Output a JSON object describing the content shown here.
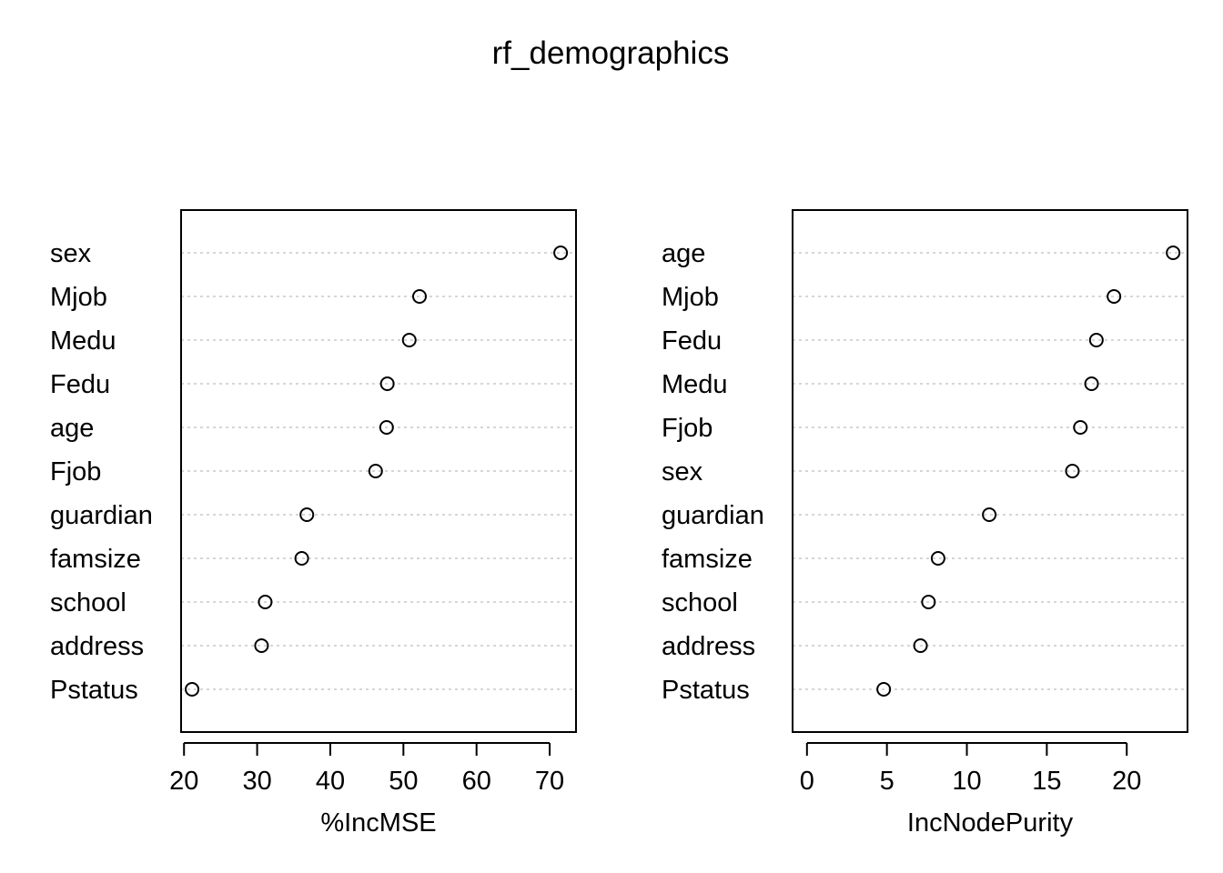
{
  "title": "rf_demographics",
  "colors": {
    "background": "#ffffff",
    "foreground": "#000000",
    "gridline": "#bebebe"
  },
  "chart_data": [
    {
      "type": "dotchart",
      "xlabel": "%IncMSE",
      "xlim": [
        19.6,
        73.6
      ],
      "xticks": [
        20,
        30,
        40,
        50,
        60,
        70
      ],
      "xtick_labels": [
        "20",
        "30",
        "40",
        "50",
        "60",
        "70"
      ],
      "grid": "dotted horizontal",
      "categories": [
        "sex",
        "Mjob",
        "Medu",
        "Fedu",
        "age",
        "Fjob",
        "guardian",
        "famsize",
        "school",
        "address",
        "Pstatus"
      ],
      "values": [
        71.5,
        52.2,
        50.8,
        47.8,
        47.7,
        46.2,
        36.8,
        36.1,
        31.1,
        30.6,
        21.1
      ]
    },
    {
      "type": "dotchart",
      "xlabel": "IncNodePurity",
      "xlim": [
        -0.9,
        23.8
      ],
      "xticks": [
        0,
        5,
        10,
        15,
        20
      ],
      "xtick_labels": [
        "0",
        "5",
        "10",
        "15",
        "20"
      ],
      "grid": "dotted horizontal",
      "categories": [
        "age",
        "Mjob",
        "Fedu",
        "Medu",
        "Fjob",
        "sex",
        "guardian",
        "famsize",
        "school",
        "address",
        "Pstatus"
      ],
      "values": [
        22.9,
        19.2,
        18.1,
        17.8,
        17.1,
        16.6,
        11.4,
        8.2,
        7.6,
        7.1,
        4.8
      ]
    }
  ]
}
